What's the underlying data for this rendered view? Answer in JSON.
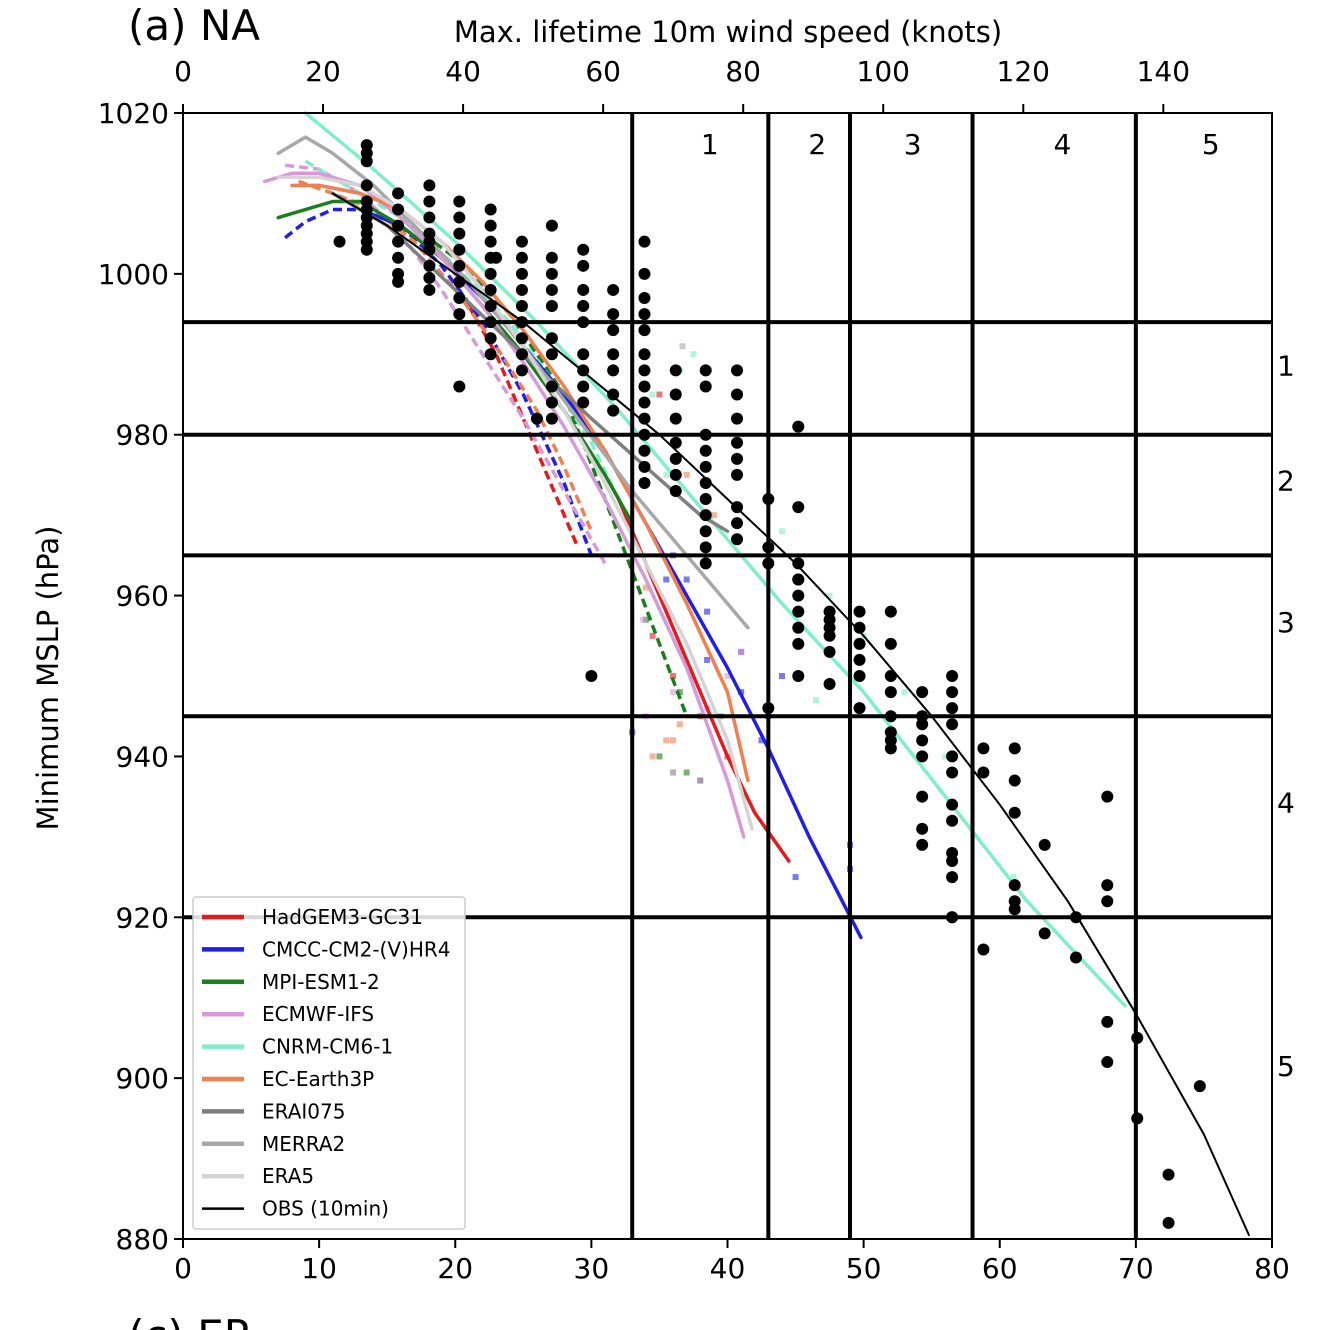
{
  "chart_data": {
    "type": "scatter",
    "panel_label": "(a) NA",
    "next_panel_label": "(c) EP",
    "xlabel_top": "Max. lifetime 10m wind speed (knots)",
    "ylabel": "Minimum MSLP (hPa)",
    "xlim": [
      0,
      80
    ],
    "ylim": [
      880,
      1020
    ],
    "x_ticks": [
      "0",
      "10",
      "20",
      "30",
      "40",
      "50",
      "60",
      "70",
      "80"
    ],
    "x_tick_values": [
      0,
      10,
      20,
      30,
      40,
      50,
      60,
      70,
      80
    ],
    "top_ticks": [
      "0",
      "20",
      "40",
      "60",
      "80",
      "100",
      "120",
      "140"
    ],
    "top_tick_values_knots": [
      0,
      20,
      40,
      60,
      80,
      100,
      120,
      140
    ],
    "knots_per_unit": 1.944,
    "y_ticks": [
      "880",
      "900",
      "920",
      "940",
      "960",
      "980",
      "1000",
      "1020"
    ],
    "y_tick_values": [
      880,
      900,
      920,
      940,
      960,
      980,
      1000,
      1020
    ],
    "wind_categories": {
      "boundaries": [
        33,
        43,
        49,
        58,
        70
      ],
      "labels": [
        "1",
        "2",
        "3",
        "4",
        "5"
      ],
      "label_x": [
        38.7,
        46.6,
        53.6,
        64.6,
        75.5
      ]
    },
    "pressure_categories": {
      "boundaries": [
        994,
        980,
        965,
        945,
        920
      ],
      "labels": [
        "1",
        "2",
        "3",
        "4",
        "5"
      ],
      "label_y": [
        988.6,
        974.3,
        956.7,
        934.3,
        901.5
      ]
    },
    "legend_position": "lower-left",
    "series": [
      {
        "name": "HadGEM3-GC31",
        "color": "#e41a1c",
        "width": 3.5,
        "dashed": {
          "x": [
            21,
            23,
            25,
            27,
            29
          ],
          "y": [
            996,
            990,
            982,
            974,
            966
          ]
        },
        "solid": {
          "x": [
            32,
            34,
            36,
            38,
            40,
            42,
            44.5
          ],
          "y": [
            972,
            964,
            956,
            948,
            940,
            933,
            927
          ]
        }
      },
      {
        "name": "CMCC-CM2-(V)HR4",
        "color": "#1f1fe6",
        "width": 3.5,
        "dashed": {
          "x": [
            7.5,
            9,
            11,
            13,
            16,
            19,
            22,
            25,
            28,
            30
          ],
          "y": [
            1004.5,
            1006.5,
            1008,
            1008,
            1006,
            1001,
            994,
            985,
            974,
            965
          ]
        },
        "solid": {
          "x": [
            13,
            16,
            19,
            22,
            25,
            28,
            31,
            34,
            37,
            40,
            43,
            46,
            49.8
          ],
          "y": [
            1008,
            1006,
            1002,
            997,
            991,
            985,
            978,
            969,
            960,
            951,
            941,
            930,
            917.5
          ]
        }
      },
      {
        "name": "MPI-ESM1-2",
        "color": "#1a7f1a",
        "width": 3.5,
        "dashed": {
          "x": [
            16,
            20,
            24,
            28,
            31,
            33,
            35,
            37
          ],
          "y": [
            1007,
            1002,
            995,
            985,
            972,
            963,
            954,
            945
          ]
        },
        "solid": {
          "x": [
            7,
            9,
            11,
            13,
            16,
            19,
            22,
            25,
            28,
            31,
            33
          ],
          "y": [
            1007,
            1008,
            1009,
            1009,
            1006,
            1002,
            996,
            990,
            983,
            975,
            969
          ]
        }
      },
      {
        "name": "ECMWF-IFS",
        "color": "#d899d8",
        "width": 3.5,
        "dashed": {
          "x": [
            7.5,
            10,
            13,
            16,
            19,
            22,
            25,
            28,
            31
          ],
          "y": [
            1013.5,
            1013,
            1010,
            1005,
            998,
            990,
            982,
            973,
            964
          ]
        },
        "solid": {
          "x": [
            6,
            8,
            10,
            13,
            16,
            19,
            22,
            25,
            28,
            31,
            34,
            37,
            40,
            41.2
          ],
          "y": [
            1011.5,
            1012.5,
            1012.5,
            1011,
            1007,
            1002,
            996,
            989,
            981,
            972,
            962,
            951,
            937,
            930
          ]
        }
      },
      {
        "name": "CNRM-CM6-1",
        "color": "#7eefc8",
        "width": 3.5,
        "dashed": {
          "x": [
            9,
            12,
            16,
            20,
            24,
            27,
            30,
            32
          ],
          "y": [
            1014,
            1011,
            1007,
            1001,
            994,
            987,
            979,
            972
          ]
        },
        "solid": {
          "x": [
            9,
            14,
            20,
            26,
            32,
            38,
            44,
            50,
            56,
            62,
            69.2
          ],
          "y": [
            1020,
            1013,
            1004,
            994,
            983,
            971,
            959,
            948,
            935,
            922,
            909
          ]
        }
      },
      {
        "name": "EC-Earth3P",
        "color": "#f08050",
        "width": 3.5,
        "dashed": {
          "x": [
            8.5,
            11,
            14,
            17,
            20,
            23,
            26,
            28,
            30
          ],
          "y": [
            1011.5,
            1010,
            1008,
            1004,
            998,
            991,
            983,
            976,
            968
          ]
        },
        "solid": {
          "x": [
            8,
            10,
            13,
            16,
            19,
            22,
            25,
            28,
            31,
            34,
            37,
            40,
            41.5
          ],
          "y": [
            1011,
            1011,
            1010,
            1008,
            1004,
            999,
            993,
            986,
            978,
            969,
            959,
            948,
            937
          ]
        }
      },
      {
        "name": "ERAI075",
        "color": "#7f7f7f",
        "width": 3.5,
        "dashed": {
          "x": [],
          "y": []
        },
        "solid": {
          "x": [
            11,
            15,
            20,
            25,
            30,
            34,
            38,
            40
          ],
          "y": [
            1010,
            1006,
            998,
            990,
            982,
            976,
            970,
            968
          ]
        }
      },
      {
        "name": "MERRA2",
        "color": "#a8a8a8",
        "width": 3.5,
        "dashed": {
          "x": [],
          "y": []
        },
        "solid": {
          "x": [
            7,
            9,
            11,
            14,
            17,
            21,
            25,
            29,
            33,
            37,
            41.5
          ],
          "y": [
            1015,
            1017,
            1015,
            1011,
            1006,
            999,
            991,
            982,
            973,
            965,
            956
          ]
        }
      },
      {
        "name": "ERA5",
        "color": "#d4d4d4",
        "width": 3.5,
        "dashed": {
          "x": [],
          "y": []
        },
        "solid": {
          "x": [
            7,
            10,
            13,
            16,
            19,
            22,
            25,
            28,
            31,
            34,
            37,
            40,
            41.8
          ],
          "y": [
            1012,
            1012,
            1011,
            1008,
            1004,
            998,
            991,
            983,
            974,
            964,
            954,
            942,
            931
          ]
        }
      },
      {
        "name": "OBS (10min)",
        "color": "#000000",
        "width": 2,
        "dashed": {
          "x": [],
          "y": []
        },
        "solid": {
          "x": [
            11,
            15,
            20,
            25,
            30,
            35,
            40,
            45,
            50,
            55,
            60,
            65,
            70,
            75,
            78.3
          ],
          "y": [
            1010,
            1006,
            1000,
            994,
            987,
            980,
            972,
            964,
            955,
            945,
            934,
            922,
            908,
            893,
            880.5
          ]
        }
      }
    ],
    "obs_points": {
      "x": [
        11.5,
        13.5,
        13.5,
        13.5,
        13.5,
        13.5,
        13.5,
        13.5,
        13.5,
        13.5,
        13.5,
        13.5,
        15.8,
        15.8,
        15.8,
        15.8,
        15.8,
        15.8,
        15.8,
        18.1,
        18.1,
        18.1,
        18.1,
        18.1,
        18.1,
        18.1,
        18.1,
        18.1,
        20.3,
        20.3,
        20.3,
        20.3,
        20.3,
        20.3,
        20.3,
        20.3,
        20.3,
        22.6,
        22.6,
        22.6,
        22.6,
        22.6,
        22.6,
        22.6,
        22.6,
        22.6,
        22.6,
        24.9,
        24.9,
        24.9,
        24.9,
        24.9,
        24.9,
        24.9,
        24.9,
        24.9,
        27.1,
        27.1,
        27.1,
        27.1,
        27.1,
        27.1,
        27.1,
        27.1,
        27.1,
        27.1,
        29.4,
        29.4,
        29.4,
        29.4,
        29.4,
        29.4,
        29.4,
        29.4,
        29.4,
        31.6,
        31.6,
        31.6,
        31.6,
        31.6,
        31.6,
        31.6,
        33.9,
        33.9,
        33.9,
        33.9,
        33.9,
        33.9,
        33.9,
        33.9,
        33.9,
        33.9,
        33.9,
        33.9,
        33.9,
        33.9,
        36.2,
        36.2,
        36.2,
        36.2,
        36.2,
        36.2,
        36.2,
        38.4,
        38.4,
        38.4,
        38.4,
        38.4,
        38.4,
        38.4,
        38.4,
        38.4,
        38.4,
        38.4,
        40.7,
        40.7,
        40.7,
        40.7,
        40.7,
        40.7,
        40.7,
        40.7,
        40.7,
        43,
        43,
        43,
        43,
        45.2,
        45.2,
        45.2,
        45.2,
        45.2,
        45.2,
        45.2,
        45.2,
        45.2,
        45.2,
        47.5,
        47.5,
        47.5,
        47.5,
        47.5,
        47.5,
        49.7,
        49.7,
        49.7,
        49.7,
        49.7,
        49.7,
        52,
        52,
        52,
        52,
        52,
        52,
        52,
        52,
        54.3,
        54.3,
        54.3,
        54.3,
        54.3,
        54.3,
        54.3,
        54.3,
        56.5,
        56.5,
        56.5,
        56.5,
        56.5,
        56.5,
        56.5,
        56.5,
        56.5,
        56.5,
        56.5,
        56.5,
        56.5,
        58.8,
        58.8,
        58.8,
        61.1,
        61.1,
        61.1,
        61.1,
        61.1,
        61.1,
        63.3,
        63.3,
        65.6,
        65.6,
        67.9,
        67.9,
        67.9,
        67.9,
        67.9,
        70.1,
        70.1,
        72.4,
        72.4,
        74.7,
        23,
        30,
        26
      ],
      "y": [
        1004,
        1016,
        1015,
        1014,
        1011,
        1009,
        1008,
        1007,
        1006,
        1005,
        1004,
        1003,
        1010,
        1008,
        1006,
        1004,
        1002,
        1000,
        999,
        1011,
        1009,
        1007,
        1005,
        1003,
        1001,
        999.5,
        998,
        1004,
        1009,
        1007,
        1005,
        1003,
        1001,
        999,
        997,
        995,
        986,
        1008,
        1006,
        1004,
        1002,
        1000,
        998,
        996,
        994,
        992,
        990,
        1004,
        1002,
        1000,
        998,
        996,
        994,
        992,
        990,
        988,
        1006,
        1002,
        1000,
        998,
        996,
        992,
        990,
        986,
        984,
        982,
        1003,
        1001,
        998,
        996,
        994,
        990,
        988,
        986,
        984,
        998,
        995,
        993,
        990,
        988,
        985,
        983,
        1004,
        1000,
        997,
        995,
        993,
        990,
        988,
        986,
        984,
        982,
        980,
        978,
        976,
        974,
        988,
        985,
        982,
        979,
        977,
        975,
        973,
        988,
        986,
        980,
        978,
        976,
        974,
        972,
        970,
        968,
        966,
        964,
        988,
        985,
        982,
        979,
        977,
        975,
        971,
        969,
        967,
        972,
        966,
        964,
        946,
        971,
        964,
        962,
        960,
        958,
        956,
        954,
        950,
        962,
        981,
        958,
        957,
        956,
        955,
        953,
        949,
        958,
        956,
        954,
        952,
        950,
        946,
        958,
        954,
        950,
        948,
        945,
        943,
        942,
        941,
        948,
        945,
        944,
        942,
        940,
        935,
        931,
        929,
        950,
        948,
        946,
        944,
        940,
        938,
        934,
        932,
        928,
        927,
        925,
        920,
        920,
        941,
        938,
        916,
        941,
        937,
        933,
        924,
        922,
        921,
        929,
        918,
        920,
        915,
        935,
        924,
        922,
        907,
        902,
        905,
        895,
        888,
        882,
        899,
        1002,
        950,
        982
      ]
    },
    "background_points": {
      "colors": [
        "#e41a1c",
        "#1f1fe6",
        "#1a7f1a",
        "#d899d8",
        "#7eefc8",
        "#f08050",
        "#7f7f7f",
        "#a8a8a8",
        "#d4d4d4"
      ],
      "x": [
        34.5,
        36,
        38,
        40,
        35,
        37,
        33,
        35.5,
        38.5,
        41,
        44,
        49,
        49,
        36,
        38.5,
        41,
        43,
        42.5,
        45,
        34,
        36.5,
        35,
        37,
        33.8,
        34,
        36,
        38,
        40,
        38.5,
        41,
        37.5,
        46.5,
        34.5,
        36.5,
        35.5,
        44,
        47.5,
        50,
        53,
        56,
        61,
        37,
        39,
        34,
        35.5,
        36,
        36.5,
        34.5,
        39.5,
        36,
        38,
        36.7
      ],
      "y": [
        955,
        950,
        945,
        940,
        985,
        962,
        943,
        962,
        958,
        953,
        950,
        929,
        926,
        965,
        952,
        948,
        945,
        942,
        925,
        957,
        948,
        940,
        938,
        957,
        945,
        948,
        937,
        950,
        946,
        953,
        990,
        947,
        985,
        988,
        975,
        968,
        960,
        955,
        948,
        940,
        925,
        975,
        970,
        961,
        942,
        942,
        944,
        940,
        945,
        938,
        937,
        991
      ],
      "series_index": [
        0,
        0,
        0,
        0,
        0,
        1,
        1,
        1,
        1,
        1,
        1,
        1,
        1,
        1,
        1,
        1,
        1,
        1,
        1,
        2,
        2,
        2,
        2,
        3,
        3,
        3,
        3,
        3,
        3,
        3,
        4,
        4,
        4,
        4,
        4,
        4,
        4,
        4,
        4,
        4,
        4,
        5,
        5,
        5,
        5,
        5,
        5,
        5,
        6,
        6,
        6,
        7
      ]
    }
  }
}
